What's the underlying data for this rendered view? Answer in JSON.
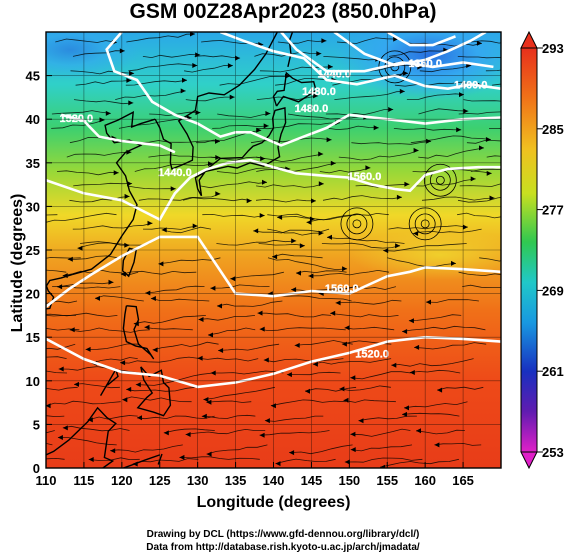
{
  "title": "GSM 00Z28Apr2023 (850.0hPa)",
  "xlabel": "Longitude (degrees)",
  "ylabel": "Latitude  (degrees)",
  "x_ticks": [
    "110",
    "115",
    "120",
    "125",
    "130",
    "135",
    "140",
    "145",
    "150",
    "155",
    "160",
    "165"
  ],
  "y_ticks": [
    "0",
    "5",
    "10",
    "15",
    "20",
    "25",
    "30",
    "35",
    "40",
    "45"
  ],
  "colorbar_ticks": [
    "293",
    "285",
    "277",
    "269",
    "261",
    "253"
  ],
  "contour_labels": [
    "1520.0",
    "1560.0",
    "1560.0",
    "1520.0",
    "1480.0",
    "1440.0",
    "1480.0",
    "1360.0",
    "1400.0",
    "1440.0"
  ],
  "credits": [
    "Drawing by DCL (https://www.gfd-dennou.org/library/dcl/)",
    "Data from http://database.rish.kyoto-u.ac.jp/arch/jmadata/"
  ],
  "map": {
    "lon_range": [
      110,
      170
    ],
    "lat_range": [
      0,
      50
    ],
    "temperature_range_K": [
      253,
      293
    ],
    "colormap": [
      "#e020c8",
      "#2030c8",
      "#1a90e0",
      "#20d0d8",
      "#20c850",
      "#90d020",
      "#e8e018",
      "#f0a020",
      "#f06018",
      "#e82010"
    ]
  }
}
